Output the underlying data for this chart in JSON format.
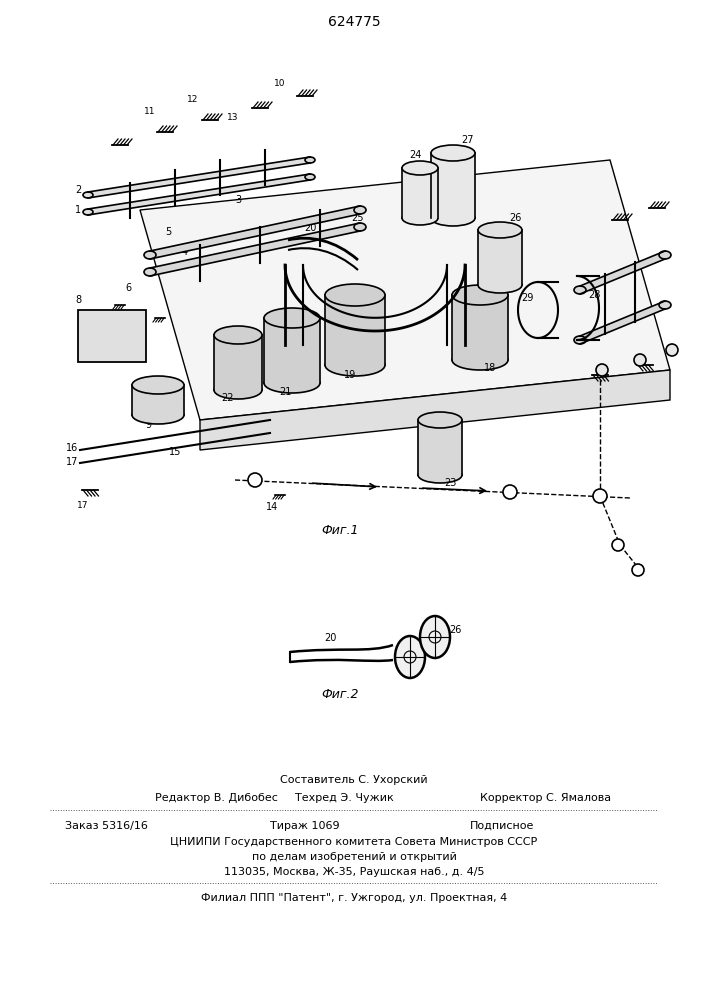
{
  "patent_number": "624775",
  "fig1_caption": "Фиг.1",
  "fig2_caption": "Фиг.2",
  "footer_line1": "Составитель С. Ухорский",
  "footer_line2_left": "Редактор В. Дибобес",
  "footer_line2_mid": "Техред Э. Чужик",
  "footer_line2_right": "Корректор С. Ямалова",
  "footer_line3_left": "Заказ 5316/16",
  "footer_line3_mid": "Тираж 1069",
  "footer_line3_right": "Подписное",
  "footer_line4": "ЦНИИПИ Государственного комитета Совета Министров СССР",
  "footer_line5": "по делам изобретений и открытий",
  "footer_line6": "113035, Москва, Ж-35, Раушская наб., д. 4/5",
  "footer_line7": "Филиал ППП \"Патент\", г. Ужгород, ул. Проектная, 4",
  "bg_color": "#ffffff",
  "line_color": "#000000",
  "text_color": "#000000"
}
